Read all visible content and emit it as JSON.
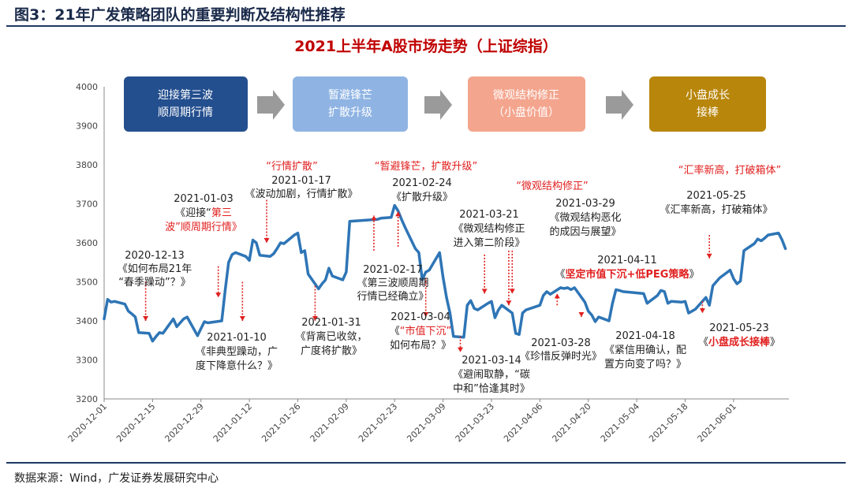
{
  "figure_caption": "图3：21年广发策略团队的重要判断及结构性推荐",
  "source_note": "数据来源：Wind，广发证券发展研究中心",
  "colors": {
    "rule": "#1f3864",
    "line": "#2e75b6",
    "title": "#c00000",
    "annotation_red": "#e0201f",
    "arrow": "#9a9a9a"
  },
  "stages": [
    {
      "lines": [
        "迎接第三波",
        "顺周期行情"
      ],
      "color": "#244f8f"
    },
    {
      "lines": [
        "暂避锋芒",
        "扩散升级"
      ],
      "color": "#8fb4e3"
    },
    {
      "lines": [
        "微观结构修正",
        "（小盘价值）"
      ],
      "color": "#f4a58e"
    },
    {
      "lines": [
        "小盘成长",
        "接棒"
      ],
      "color": "#b8860b"
    }
  ],
  "chart_data": {
    "type": "line",
    "title": "2021上半年A股市场走势（上证综指）",
    "ylim": [
      3200,
      4000
    ],
    "yticks": [
      3200,
      3300,
      3400,
      3500,
      3600,
      3700,
      3800,
      3900,
      4000
    ],
    "x_ticks": [
      "2020-12-01",
      "2020-12-15",
      "2020-12-29",
      "2021-01-12",
      "2021-01-26",
      "2021-02-09",
      "2021-02-23",
      "2021-03-09",
      "2021-03-23",
      "2021-04-06",
      "2021-04-20",
      "2021-05-04",
      "2021-05-18",
      "2021-06-01"
    ],
    "grid": false,
    "series": [
      {
        "values": [
          [
            "2020-12-01",
            3405
          ],
          [
            "2020-12-02",
            3455
          ],
          [
            "2020-12-03",
            3448
          ],
          [
            "2020-12-04",
            3450
          ],
          [
            "2020-12-07",
            3443
          ],
          [
            "2020-12-08",
            3425
          ],
          [
            "2020-12-09",
            3418
          ],
          [
            "2020-12-10",
            3410
          ],
          [
            "2020-12-11",
            3370
          ],
          [
            "2020-12-14",
            3368
          ],
          [
            "2020-12-15",
            3348
          ],
          [
            "2020-12-16",
            3360
          ],
          [
            "2020-12-17",
            3370
          ],
          [
            "2020-12-18",
            3368
          ],
          [
            "2020-12-21",
            3405
          ],
          [
            "2020-12-22",
            3385
          ],
          [
            "2020-12-23",
            3395
          ],
          [
            "2020-12-24",
            3405
          ],
          [
            "2020-12-25",
            3410
          ],
          [
            "2020-12-28",
            3362
          ],
          [
            "2020-12-29",
            3380
          ],
          [
            "2020-12-30",
            3398
          ],
          [
            "2020-12-31",
            3395
          ],
          [
            "2021-01-04",
            3400
          ],
          [
            "2021-01-05",
            3478
          ],
          [
            "2021-01-06",
            3550
          ],
          [
            "2021-01-07",
            3570
          ],
          [
            "2021-01-08",
            3575
          ],
          [
            "2021-01-11",
            3565
          ],
          [
            "2021-01-12",
            3555
          ],
          [
            "2021-01-13",
            3607
          ],
          [
            "2021-01-14",
            3600
          ],
          [
            "2021-01-15",
            3568
          ],
          [
            "2021-01-18",
            3565
          ],
          [
            "2021-01-19",
            3572
          ],
          [
            "2021-01-20",
            3585
          ],
          [
            "2021-01-21",
            3600
          ],
          [
            "2021-01-22",
            3598
          ],
          [
            "2021-01-25",
            3620
          ],
          [
            "2021-01-26",
            3625
          ],
          [
            "2021-01-27",
            3575
          ],
          [
            "2021-01-28",
            3580
          ],
          [
            "2021-01-29",
            3520
          ],
          [
            "2021-02-01",
            3482
          ],
          [
            "2021-02-02",
            3495
          ],
          [
            "2021-02-03",
            3505
          ],
          [
            "2021-02-04",
            3535
          ],
          [
            "2021-02-05",
            3515
          ],
          [
            "2021-02-08",
            3505
          ],
          [
            "2021-02-09",
            3525
          ],
          [
            "2021-02-10",
            3655
          ],
          [
            "2021-02-18",
            3660
          ],
          [
            "2021-02-19",
            3663
          ],
          [
            "2021-02-22",
            3665
          ],
          [
            "2021-02-23",
            3696
          ],
          [
            "2021-02-24",
            3682
          ],
          [
            "2021-02-25",
            3660
          ],
          [
            "2021-02-26",
            3640
          ],
          [
            "2021-03-01",
            3585
          ],
          [
            "2021-03-02",
            3575
          ],
          [
            "2021-03-03",
            3505
          ],
          [
            "2021-03-04",
            3525
          ],
          [
            "2021-03-05",
            3530
          ],
          [
            "2021-03-08",
            3575
          ],
          [
            "2021-03-09",
            3512
          ],
          [
            "2021-03-10",
            3460
          ],
          [
            "2021-03-11",
            3420
          ],
          [
            "2021-03-12",
            3360
          ],
          [
            "2021-03-15",
            3358
          ],
          [
            "2021-03-16",
            3440
          ],
          [
            "2021-03-17",
            3452
          ],
          [
            "2021-03-18",
            3432
          ],
          [
            "2021-03-19",
            3428
          ],
          [
            "2021-03-22",
            3445
          ],
          [
            "2021-03-23",
            3450
          ],
          [
            "2021-03-24",
            3408
          ],
          [
            "2021-03-25",
            3428
          ],
          [
            "2021-03-26",
            3440
          ],
          [
            "2021-03-29",
            3420
          ],
          [
            "2021-03-30",
            3368
          ],
          [
            "2021-03-31",
            3365
          ],
          [
            "2021-04-01",
            3420
          ],
          [
            "2021-04-02",
            3428
          ],
          [
            "2021-04-06",
            3440
          ],
          [
            "2021-04-07",
            3465
          ],
          [
            "2021-04-08",
            3475
          ],
          [
            "2021-04-09",
            3468
          ],
          [
            "2021-04-12",
            3485
          ],
          [
            "2021-04-13",
            3483
          ],
          [
            "2021-04-14",
            3485
          ],
          [
            "2021-04-15",
            3480
          ],
          [
            "2021-04-16",
            3485
          ],
          [
            "2021-04-19",
            3448
          ],
          [
            "2021-04-20",
            3425
          ],
          [
            "2021-04-21",
            3415
          ],
          [
            "2021-04-22",
            3398
          ],
          [
            "2021-04-23",
            3410
          ],
          [
            "2021-04-26",
            3400
          ],
          [
            "2021-04-27",
            3445
          ],
          [
            "2021-04-28",
            3480
          ],
          [
            "2021-04-29",
            3478
          ],
          [
            "2021-04-30",
            3475
          ],
          [
            "2021-05-06",
            3470
          ],
          [
            "2021-05-07",
            3445
          ],
          [
            "2021-05-10",
            3465
          ],
          [
            "2021-05-11",
            3478
          ],
          [
            "2021-05-12",
            3475
          ],
          [
            "2021-05-13",
            3445
          ],
          [
            "2021-05-14",
            3450
          ],
          [
            "2021-05-17",
            3448
          ],
          [
            "2021-05-18",
            3450
          ],
          [
            "2021-05-19",
            3420
          ],
          [
            "2021-05-20",
            3425
          ],
          [
            "2021-05-21",
            3430
          ],
          [
            "2021-05-24",
            3460
          ],
          [
            "2021-05-25",
            3440
          ],
          [
            "2021-05-26",
            3490
          ],
          [
            "2021-05-27",
            3500
          ],
          [
            "2021-05-28",
            3510
          ],
          [
            "2021-05-31",
            3530
          ],
          [
            "2021-06-01",
            3508
          ],
          [
            "2021-06-02",
            3495
          ],
          [
            "2021-06-03",
            3502
          ],
          [
            "2021-06-04",
            3580
          ],
          [
            "2021-06-07",
            3598
          ],
          [
            "2021-06-08",
            3610
          ],
          [
            "2021-06-09",
            3605
          ],
          [
            "2021-06-10",
            3612
          ],
          [
            "2021-06-11",
            3620
          ],
          [
            "2021-06-14",
            3625
          ],
          [
            "2021-06-15",
            3608
          ],
          [
            "2021-06-16",
            3585
          ]
        ]
      }
    ],
    "annotations": [
      {
        "date": "2020-12-13",
        "lines": [
          "《如何布局21年",
          "“春季躁动”？》"
        ],
        "arrow_from": 3500,
        "arrow_to": 3400
      },
      {
        "date": "2021-01-03",
        "lines": [
          [
            "《迎接“",
            "第三"
          ],
          [
            "波",
            "”顺周期行情》"
          ]
        ],
        "arrow_from": 3540,
        "arrow_to": 3460
      },
      {
        "date": "2021-01-10",
        "lines": [
          "《非典型躁动，广",
          "度下降意什么？》"
        ],
        "arrow_from": 3500,
        "arrow_to": 3400
      },
      {
        "date": "2021-01-17",
        "red": "“行情扩散”",
        "lines": [
          "《波动加剧，行情扩散》"
        ],
        "arrow_from": 3710,
        "arrow_to": 3600
      },
      {
        "date": "2021-01-31",
        "lines": [
          "《背离已收敛，",
          "广度将扩散》"
        ],
        "arrow_from": 3490,
        "arrow_to": 3400
      },
      {
        "date": "2021-02-17",
        "lines": [
          "《第三波顺周期",
          "行情已经确立》"
        ],
        "arrow_from": 3580,
        "arrow_to": 3670
      },
      {
        "date": "2021-02-24",
        "red": "“暂避锋芒，扩散升级”",
        "lines": [
          "《扩散升级》"
        ],
        "arrow_from": 3590,
        "arrow_to": 3680
      },
      {
        "date": "2021-03-04",
        "lines": [
          [
            "《",
            "“市值下沉”"
          ],
          "如何布局？》"
        ],
        "arrow_from": 3510,
        "arrow_to": 3410
      },
      {
        "date": "2021-03-14",
        "lines": [
          "《避闹取静，“碳",
          "中和”恰逢其时》"
        ],
        "arrow_from": 3360,
        "arrow_to": 3320
      },
      {
        "date": "2021-03-21",
        "lines": [
          "《微观结构修正",
          "进入第二阶段》"
        ],
        "arrow_from": 3570,
        "arrow_to": 3470
      },
      {
        "date": "2021-03-28",
        "red": "“微观结构修正”",
        "lines": [
          "《珍惜反弹时光》"
        ],
        "arrow_from": 3580,
        "arrow_to": 3440
      },
      {
        "date": "2021-03-29",
        "lines": [
          "《微观结构恶化",
          "的成因与展望》"
        ],
        "arrow_from": 3580,
        "arrow_to": 3470
      },
      {
        "date": "2021-04-11",
        "lines": [
          [
            "《",
            "坚定市值下沉+低PEG策略",
            "》"
          ]
        ],
        "arrow_from": 3440,
        "arrow_to": 3470
      },
      {
        "date": "2021-04-18",
        "lines": [
          "《紧信用确认，配",
          "置方向变了吗？》"
        ],
        "arrow_from": 3420,
        "arrow_to": 3410
      },
      {
        "date": "2021-05-23",
        "lines": [
          [
            "《",
            "小盘成长接棒",
            "》"
          ]
        ],
        "arrow_from": 3450,
        "arrow_to": 3420
      },
      {
        "date": "2021-05-25",
        "red": "“汇率新高，打破箱体”",
        "lines": [
          "《汇率新高，打破箱体》"
        ],
        "arrow_from": 3620,
        "arrow_to": 3560
      }
    ]
  },
  "annotation_texts": {
    "a1_date": "2020-12-13",
    "a1_l1": "《如何布局21年",
    "a1_l2": "“春季躁动”？》",
    "a2_date": "2021-01-03",
    "a2_l1a": "《迎接“",
    "a2_l1b": "第三",
    "a2_l2a": "波",
    "a2_l2b": "”顺周期行情》",
    "a3_date": "2021-01-10",
    "a3_l1": "《非典型躁动，广",
    "a3_l2": "度下降意什么？》",
    "a4_red": "“行情扩散”",
    "a4_date": "2021-01-17",
    "a4_l1": "《波动加剧，行情扩散》",
    "a5_date": "2021-01-31",
    "a5_l1": "《背离已收敛，",
    "a5_l2": "广度将扩散》",
    "a6_date": "2021-02-17",
    "a6_l1": "《第三波顺周期",
    "a6_l2": "行情已经确立》",
    "a7_red": "“暂避锋芒，扩散升级”",
    "a7_date": "2021-02-24",
    "a7_l1": "《扩散升级》",
    "a8_date": "2021-03-04",
    "a8_l1a": "《",
    "a8_l1b": "“市值下沉”",
    "a8_l2": "如何布局？》",
    "a9_date": "2021-03-14",
    "a9_l1": "《避闹取静，“碳",
    "a9_l2": "中和”恰逢其时》",
    "a10_date": "2021-03-21",
    "a10_l1": "《微观结构修正",
    "a10_l2": "进入第二阶段》",
    "a11_red": "“微观结构修正”",
    "a11_date": "2021-03-28",
    "a11_l1": "《珍惜反弹时光》",
    "a12_date": "2021-03-29",
    "a12_l1": "《微观结构恶化",
    "a12_l2": "的成因与展望》",
    "a13_date": "2021-04-11",
    "a13_l1a": "《",
    "a13_l1b": "坚定市值下沉+低PEG策略",
    "a13_l1c": "》",
    "a14_date": "2021-04-18",
    "a14_l1": "《紧信用确认，配",
    "a14_l2": "置方向变了吗？》",
    "a15_date": "2021-05-23",
    "a15_l1a": "《",
    "a15_l1b": "小盘成长接棒",
    "a15_l1c": "》",
    "a16_red": "“汇率新高，打破箱体”",
    "a16_date": "2021-05-25",
    "a16_l1": "《汇率新高，打破箱体》"
  }
}
